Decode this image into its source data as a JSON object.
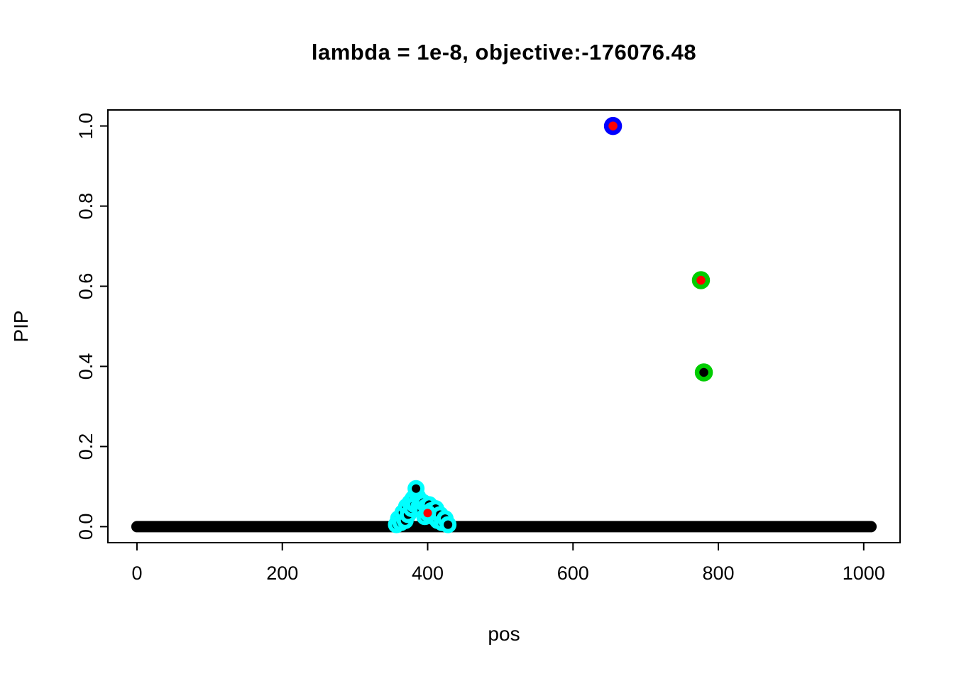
{
  "chart_data": {
    "type": "scatter",
    "title": "lambda = 1e-8, objective:-176076.48",
    "xlabel": "pos",
    "ylabel": "PIP",
    "xlim": [
      -40,
      1050
    ],
    "ylim": [
      -0.04,
      1.04
    ],
    "xticks": [
      0,
      200,
      400,
      600,
      800,
      1000
    ],
    "xtick_labels": [
      "0",
      "200",
      "400",
      "600",
      "800",
      "1000"
    ],
    "yticks": [
      0,
      0.2,
      0.4,
      0.6,
      0.8,
      1.0
    ],
    "ytick_labels": [
      "0.0",
      "0.2",
      "0.4",
      "0.6",
      "0.8",
      "1.0"
    ],
    "grid": false,
    "legend": false,
    "background_band": {
      "x_start": 0,
      "x_end": 1010,
      "y": 0,
      "color": "#000000",
      "point_radius": 8
    },
    "cluster_style": {
      "ring": "#00FFFF",
      "fill": "#000000"
    },
    "cluster_points": [
      {
        "x": 357,
        "y": 0.005
      },
      {
        "x": 360,
        "y": 0.02
      },
      {
        "x": 363,
        "y": 0.01
      },
      {
        "x": 366,
        "y": 0.035
      },
      {
        "x": 369,
        "y": 0.015
      },
      {
        "x": 371,
        "y": 0.05
      },
      {
        "x": 373,
        "y": 0.03
      },
      {
        "x": 376,
        "y": 0.06
      },
      {
        "x": 378,
        "y": 0.045
      },
      {
        "x": 380,
        "y": 0.07
      },
      {
        "x": 382,
        "y": 0.055
      },
      {
        "x": 386,
        "y": 0.075
      },
      {
        "x": 388,
        "y": 0.05
      },
      {
        "x": 390,
        "y": 0.065
      },
      {
        "x": 392,
        "y": 0.04
      },
      {
        "x": 394,
        "y": 0.06
      },
      {
        "x": 396,
        "y": 0.025
      },
      {
        "x": 398,
        "y": 0.05
      },
      {
        "x": 402,
        "y": 0.055
      },
      {
        "x": 405,
        "y": 0.04
      },
      {
        "x": 408,
        "y": 0.025
      },
      {
        "x": 411,
        "y": 0.045
      },
      {
        "x": 414,
        "y": 0.015
      },
      {
        "x": 417,
        "y": 0.03
      },
      {
        "x": 420,
        "y": 0.01
      },
      {
        "x": 424,
        "y": 0.02
      },
      {
        "x": 428,
        "y": 0.005
      },
      {
        "x": 384,
        "y": 0.095
      },
      {
        "x": 400,
        "y": 0.034,
        "fill": "#FF0000"
      }
    ],
    "highlight_points": [
      {
        "x": 655,
        "y": 1.0,
        "fill": "#FF0000",
        "ring": "#0000FF"
      },
      {
        "x": 776,
        "y": 0.615,
        "fill": "#FF0000",
        "ring": "#00CD00"
      },
      {
        "x": 780,
        "y": 0.385,
        "fill": "#000000",
        "ring": "#00CD00"
      }
    ]
  }
}
